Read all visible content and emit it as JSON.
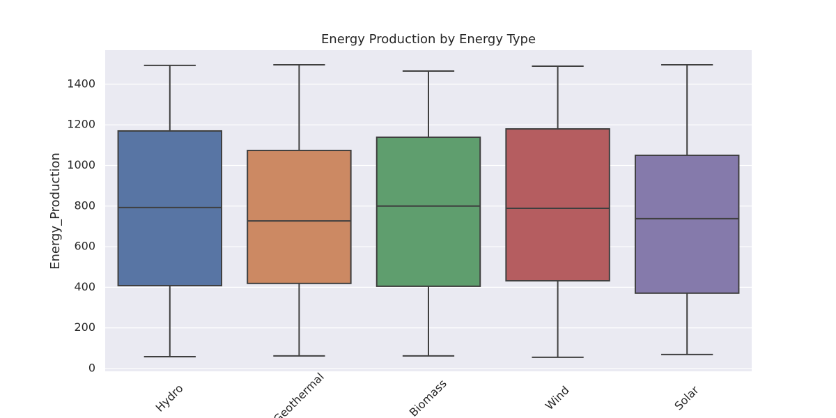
{
  "chart_data": {
    "type": "box",
    "title": "Energy Production by Energy Type",
    "y_label": "Energy_Production",
    "categories": [
      "Hydro",
      "Geothermal",
      "Biomass",
      "Wind",
      "Solar"
    ],
    "colors": [
      "#5875a4",
      "#cc8963",
      "#5f9e6e",
      "#b55d60",
      "#857aab"
    ],
    "whisker_low": [
      58,
      62,
      62,
      55,
      69
    ],
    "q1": [
      408,
      419,
      405,
      432,
      371
    ],
    "median": [
      793,
      727,
      800,
      789,
      738
    ],
    "q3": [
      1170,
      1074,
      1139,
      1180,
      1050
    ],
    "whisker_high": [
      1493,
      1496,
      1465,
      1489,
      1496
    ],
    "ylim": [
      -14,
      1568
    ],
    "yticks": [
      0,
      200,
      400,
      600,
      800,
      1000,
      1200,
      1400
    ],
    "grid": true
  }
}
